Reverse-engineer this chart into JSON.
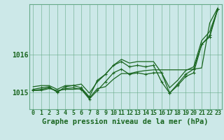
{
  "bg_color": "#cce8e8",
  "grid_color": "#66aa88",
  "line_color": "#1a6620",
  "title": "Graphe pression niveau de la mer (hPa)",
  "title_fontsize": 7.5,
  "xlabel_fontsize": 6.0,
  "ylabel_fontsize": 7.0,
  "xlim": [
    -0.5,
    23.5
  ],
  "ylim": [
    1014.55,
    1017.35
  ],
  "yticks": [
    1015,
    1016
  ],
  "xtick_labels": [
    "0",
    "1",
    "2",
    "3",
    "4",
    "5",
    "6",
    "7",
    "8",
    "9",
    "10",
    "11",
    "12",
    "13",
    "14",
    "15",
    "16",
    "17",
    "18",
    "19",
    "20",
    "21",
    "22",
    "23"
  ],
  "series": [
    {
      "y": [
        1015.05,
        1015.05,
        1015.1,
        1015.05,
        1015.08,
        1015.08,
        1015.1,
        1014.85,
        1015.1,
        1015.15,
        1015.35,
        1015.5,
        1015.5,
        1015.55,
        1015.58,
        1015.6,
        1015.6,
        1015.6,
        1015.6,
        1015.6,
        1015.62,
        1015.65,
        1016.85,
        1017.25
      ],
      "marker": false,
      "lw": 0.9
    },
    {
      "y": [
        1015.05,
        1015.08,
        1015.12,
        1015.02,
        1015.1,
        1015.12,
        1015.08,
        1014.82,
        1015.05,
        1015.28,
        1015.52,
        1015.62,
        1015.48,
        1015.52,
        1015.48,
        1015.52,
        1015.52,
        1014.98,
        1015.18,
        1015.42,
        1015.52,
        1016.28,
        1016.48,
        1017.22
      ],
      "marker": true,
      "lw": 0.9
    },
    {
      "y": [
        1015.08,
        1015.12,
        1015.15,
        1015.0,
        1015.15,
        1015.18,
        1015.12,
        1014.88,
        1015.32,
        1015.48,
        1015.72,
        1015.82,
        1015.68,
        1015.72,
        1015.68,
        1015.72,
        1015.28,
        1014.98,
        1015.22,
        1015.48,
        1015.62,
        1016.28,
        1016.52,
        1017.22
      ],
      "marker": true,
      "lw": 0.9
    },
    {
      "y": [
        1015.15,
        1015.18,
        1015.18,
        1015.08,
        1015.18,
        1015.18,
        1015.22,
        1014.98,
        1015.28,
        1015.48,
        1015.72,
        1015.88,
        1015.78,
        1015.82,
        1015.82,
        1015.82,
        1015.52,
        1015.12,
        1015.32,
        1015.58,
        1015.68,
        1016.38,
        1016.62,
        1017.22
      ],
      "marker": false,
      "lw": 0.9
    }
  ]
}
